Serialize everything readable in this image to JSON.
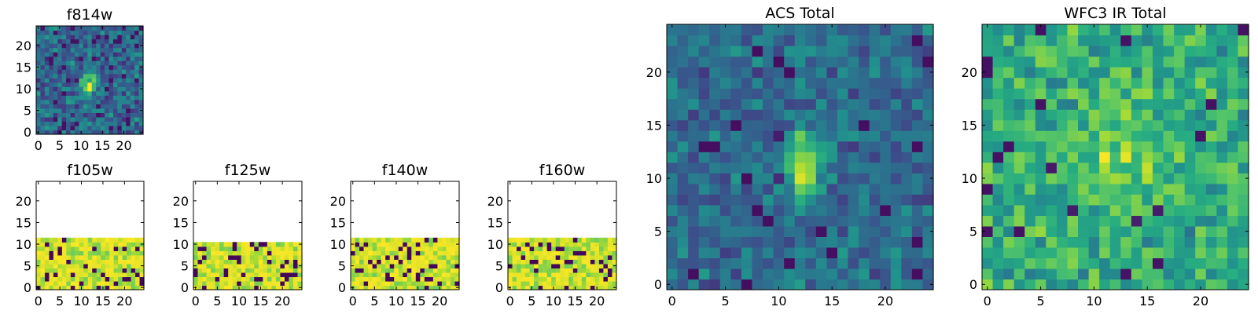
{
  "chart_data": [
    {
      "type": "heatmap",
      "panel": "f814w",
      "title": "f814w",
      "xlim": [
        -0.5,
        24.5
      ],
      "ylim": [
        -0.5,
        24.5
      ],
      "x_ticks": [
        0,
        5,
        10,
        15,
        20
      ],
      "y_ticks": [
        0,
        5,
        10,
        15,
        20
      ],
      "colormap": "viridis",
      "grid_size": [
        25,
        25
      ],
      "data_rows": 25,
      "pattern": "noise with bright compact source near x=12, y=11"
    },
    {
      "type": "heatmap",
      "panel": "f105w",
      "title": "f105w",
      "xlim": [
        -0.5,
        24.5
      ],
      "ylim": [
        -0.5,
        24.5
      ],
      "x_ticks": [
        0,
        5,
        10,
        15,
        20
      ],
      "y_ticks": [
        0,
        5,
        10,
        15,
        20
      ],
      "colormap": "viridis",
      "grid_size": [
        25,
        25
      ],
      "data_rows": 12,
      "pattern": "mostly saturated yellow with dark blocks; rows above 11 empty"
    },
    {
      "type": "heatmap",
      "panel": "f125w",
      "title": "f125w",
      "xlim": [
        -0.5,
        24.5
      ],
      "ylim": [
        -0.5,
        24.5
      ],
      "x_ticks": [
        0,
        5,
        10,
        15,
        20
      ],
      "y_ticks": [
        0,
        5,
        10,
        15,
        20
      ],
      "colormap": "viridis",
      "grid_size": [
        25,
        25
      ],
      "data_rows": 11,
      "pattern": "mostly saturated yellow with dark blocks; rows above 10 empty"
    },
    {
      "type": "heatmap",
      "panel": "f140w",
      "title": "f140w",
      "xlim": [
        -0.5,
        24.5
      ],
      "ylim": [
        -0.5,
        24.5
      ],
      "x_ticks": [
        0,
        5,
        10,
        15,
        20
      ],
      "y_ticks": [
        0,
        5,
        10,
        15,
        20
      ],
      "colormap": "viridis",
      "grid_size": [
        25,
        25
      ],
      "data_rows": 12,
      "pattern": "mostly saturated yellow with dark blocks; rows above 11 empty"
    },
    {
      "type": "heatmap",
      "panel": "f160w",
      "title": "f160w",
      "xlim": [
        -0.5,
        24.5
      ],
      "ylim": [
        -0.5,
        24.5
      ],
      "x_ticks": [
        0,
        5,
        10,
        15,
        20
      ],
      "y_ticks": [
        0,
        5,
        10,
        15,
        20
      ],
      "colormap": "viridis",
      "grid_size": [
        25,
        25
      ],
      "data_rows": 12,
      "pattern": "mostly saturated yellow with dark blocks; rows above 11 empty"
    },
    {
      "type": "heatmap",
      "panel": "acs_total",
      "title": "ACS Total",
      "xlim": [
        -0.5,
        24.5
      ],
      "ylim": [
        -0.5,
        24.5
      ],
      "x_ticks": [
        0,
        5,
        10,
        15,
        20
      ],
      "y_ticks": [
        0,
        5,
        10,
        15,
        20
      ],
      "colormap": "viridis",
      "grid_size": [
        25,
        25
      ],
      "data_rows": 25,
      "pattern": "noise with bright source spanning x=11-13, y=9-13"
    },
    {
      "type": "heatmap",
      "panel": "wfc3_ir_total",
      "title": "WFC3 IR Total",
      "xlim": [
        -0.5,
        24.5
      ],
      "ylim": [
        -0.5,
        24.5
      ],
      "x_ticks": [
        0,
        5,
        10,
        15,
        20
      ],
      "y_ticks": [
        0,
        5,
        10,
        15,
        20
      ],
      "colormap": "viridis",
      "grid_size": [
        25,
        25
      ],
      "data_rows": 25,
      "pattern": "green-yellow noise, slightly brighter around x=12, y=12"
    }
  ]
}
